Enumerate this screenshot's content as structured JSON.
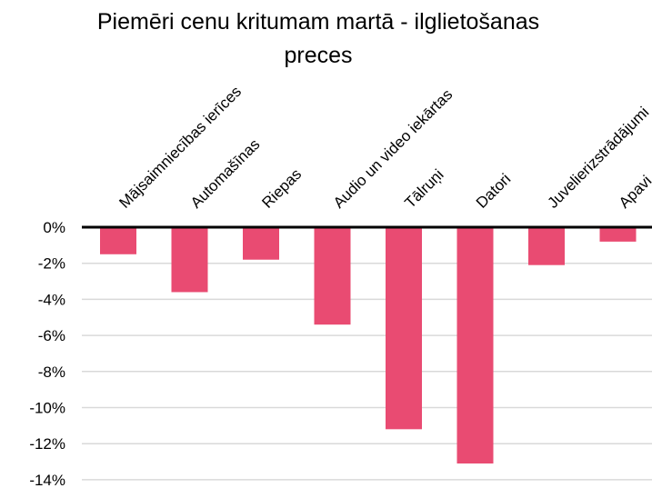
{
  "chart_data": {
    "type": "bar",
    "title_lines": [
      "Piemēri cenu kritumam martā - ilglietošanas",
      "preces"
    ],
    "categories": [
      "Mājsaimniecības ierīces",
      "Automašīnas",
      "Riepas",
      "Audio un video iekārtas",
      "Tālruņi",
      "Datori",
      "Juvelierizstrādājumi",
      "Apavi"
    ],
    "values": [
      -1.5,
      -3.6,
      -1.8,
      -5.4,
      -11.2,
      -13.1,
      -2.1,
      -0.8
    ],
    "unit": "%",
    "ylim": [
      -14,
      0
    ],
    "yticks": [
      "0%",
      "-2%",
      "-4%",
      "-6%",
      "-8%",
      "-10%",
      "-12%",
      "-14%"
    ],
    "grid": true,
    "colors": {
      "bar": "#e94b72",
      "grid": "#d9d9d9",
      "axis": "#000000"
    }
  }
}
